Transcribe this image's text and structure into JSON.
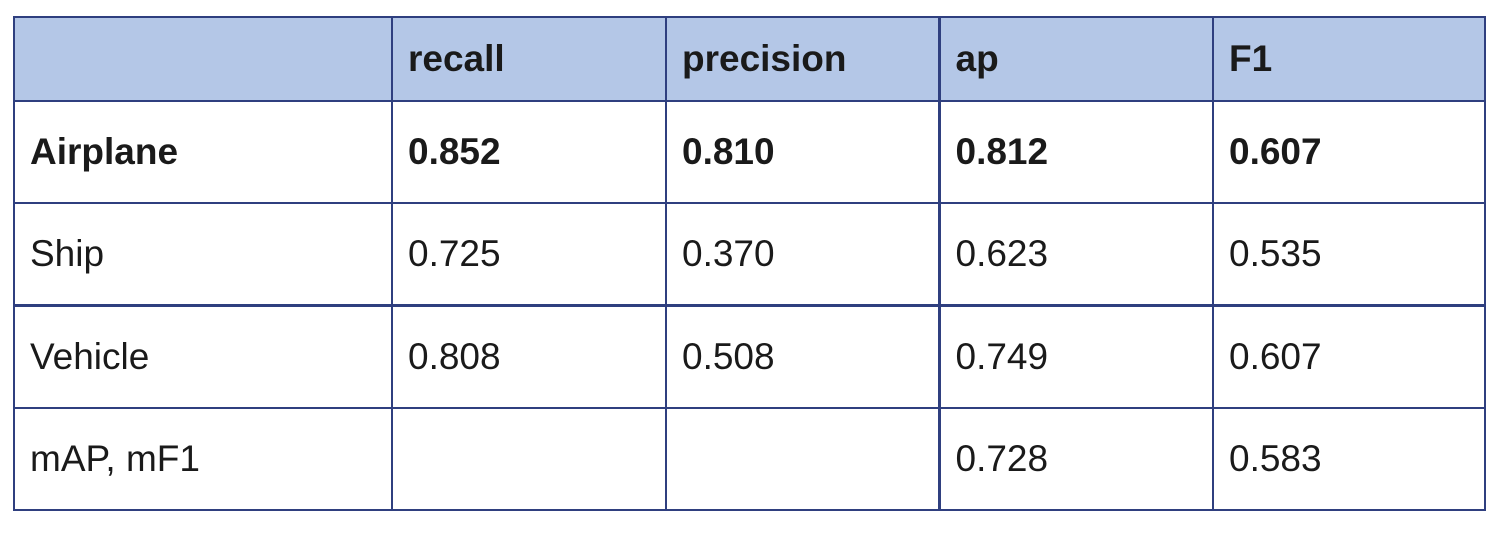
{
  "table": {
    "header": {
      "row_label": "",
      "recall": "recall",
      "precision": "precision",
      "ap": "ap",
      "f1": "F1"
    },
    "rows": [
      {
        "label": "Airplane",
        "recall": "0.852",
        "precision": "0.810",
        "ap": "0.812",
        "f1": "0.607",
        "bold": true
      },
      {
        "label": "Ship",
        "recall": "0.725",
        "precision": "0.370",
        "ap": "0.623",
        "f1": "0.535",
        "bold": false
      },
      {
        "label": "Vehicle",
        "recall": "0.808",
        "precision": "0.508",
        "ap": "0.749",
        "f1": "0.607",
        "bold": false
      },
      {
        "label": "mAP, mF1",
        "recall": "",
        "precision": "",
        "ap": "0.728",
        "f1": "0.583",
        "bold": false
      }
    ]
  },
  "colors": {
    "header_background": "#b4c7e7",
    "border": "#2f3f7f",
    "text": "#1a1a1a"
  }
}
